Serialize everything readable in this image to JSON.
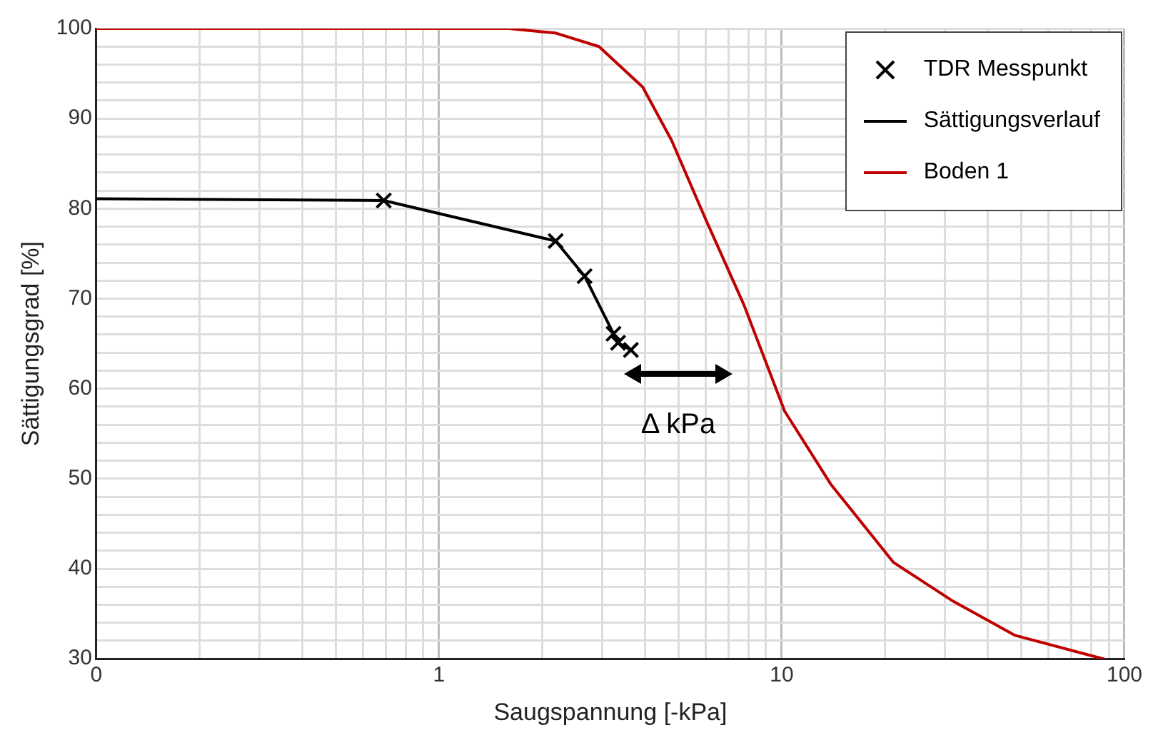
{
  "chart_data": {
    "type": "line",
    "xlabel": "Saugspannung [-kPa]",
    "ylabel": "Sättigungsgrad [%]",
    "log": "x",
    "grid": true,
    "legend": "top right",
    "xlim": [
      0.1,
      100
    ],
    "ylim": [
      30,
      100
    ],
    "xticks": [
      {
        "value": 0.1,
        "label": "0"
      },
      {
        "value": 0.2,
        "label": null
      },
      {
        "value": 0.3,
        "label": null
      },
      {
        "value": 0.4,
        "label": null
      },
      {
        "value": 0.5,
        "label": null
      },
      {
        "value": 0.6,
        "label": null
      },
      {
        "value": 0.7,
        "label": null
      },
      {
        "value": 0.8,
        "label": null
      },
      {
        "value": 0.9,
        "label": null
      },
      1,
      {
        "value": 2,
        "label": null
      },
      {
        "value": 3,
        "label": null
      },
      {
        "value": 4,
        "label": null
      },
      {
        "value": 5,
        "label": null
      },
      {
        "value": 6,
        "label": null
      },
      {
        "value": 7,
        "label": null
      },
      {
        "value": 8,
        "label": null
      },
      {
        "value": 9,
        "label": null
      },
      10,
      {
        "value": 20,
        "label": null
      },
      {
        "value": 30,
        "label": null
      },
      {
        "value": 40,
        "label": null
      },
      {
        "value": 50,
        "label": null
      },
      {
        "value": 60,
        "label": null
      },
      {
        "value": 70,
        "label": null
      },
      {
        "value": 80,
        "label": null
      },
      {
        "value": 90,
        "label": null
      },
      100
    ],
    "yticks": [
      30,
      {
        "value": 32,
        "label": null
      },
      {
        "value": 34,
        "label": null
      },
      {
        "value": 36,
        "label": null
      },
      {
        "value": 38,
        "label": null
      },
      40,
      {
        "value": 42,
        "label": null
      },
      {
        "value": 44,
        "label": null
      },
      {
        "value": 46,
        "label": null
      },
      {
        "value": 48,
        "label": null
      },
      50,
      {
        "value": 52,
        "label": null
      },
      {
        "value": 54,
        "label": null
      },
      {
        "value": 56,
        "label": null
      },
      {
        "value": 58,
        "label": null
      },
      60,
      {
        "value": 62,
        "label": null
      },
      {
        "value": 64,
        "label": null
      },
      {
        "value": 66,
        "label": null
      },
      {
        "value": 68,
        "label": null
      },
      70,
      {
        "value": 72,
        "label": null
      },
      {
        "value": 74,
        "label": null
      },
      {
        "value": 76,
        "label": null
      },
      {
        "value": 78,
        "label": null
      },
      80,
      {
        "value": 82,
        "label": null
      },
      {
        "value": 84,
        "label": null
      },
      {
        "value": 86,
        "label": null
      },
      {
        "value": 88,
        "label": null
      },
      90,
      {
        "value": 92,
        "label": null
      },
      {
        "value": 94,
        "label": null
      },
      {
        "value": 96,
        "label": null
      },
      {
        "value": 98,
        "label": null
      },
      100
    ],
    "series": [
      {
        "name": "TDR Messpunkt",
        "type": "scatter",
        "marker": "cross",
        "color": "#000000",
        "x": [
          0.69,
          2.19,
          2.66,
          3.23,
          3.33,
          3.63
        ],
        "values": [
          80.9,
          76.4,
          72.5,
          66.1,
          65.1,
          64.3
        ]
      },
      {
        "name": "Sättigungsverlauf",
        "marker": "none",
        "color": "#000000",
        "x": [
          0.1,
          0.69,
          2.19,
          2.66,
          3.23,
          3.33,
          3.63
        ],
        "values": [
          81.1,
          80.9,
          76.4,
          72.5,
          66.1,
          65.1,
          64.3
        ]
      },
      {
        "name": "Boden 1",
        "marker": "none",
        "color": "#c00000",
        "x": [
          0.1,
          1.6,
          2.19,
          2.93,
          3.93,
          4.77,
          5.97,
          7.76,
          10.2,
          13.9,
          21.2,
          31.3,
          48,
          82.8,
          86.9
        ],
        "values": [
          100,
          100,
          99.5,
          98,
          93.5,
          87.6,
          79,
          69.3,
          57.5,
          49.4,
          40.7,
          36.5,
          32.6,
          30.2,
          30
        ]
      }
    ],
    "annotations": [
      "Δ kPa"
    ]
  }
}
